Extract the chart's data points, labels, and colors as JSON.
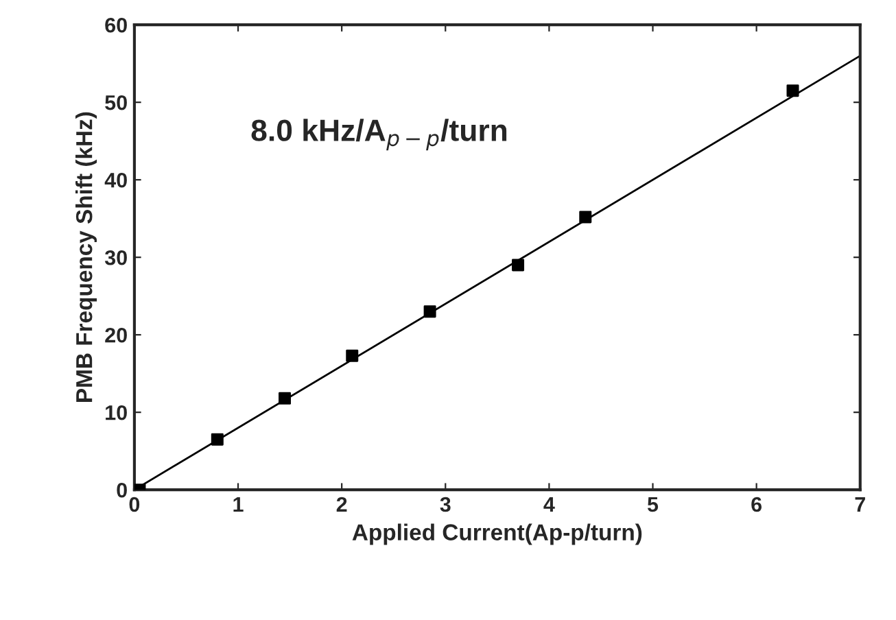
{
  "chart_data": {
    "type": "scatter",
    "xlabel": "Applied Current(Ap-p/turn)",
    "ylabel": "PMB Frequency Shift (kHz)",
    "annotations": [
      "8.0 kHz/A$_{p−p}$/turn"
    ],
    "series": [
      {
        "color": "#000000",
        "marker": "square",
        "x": [
          0.05,
          0.8,
          1.45,
          2.1,
          2.85,
          3.7,
          4.35,
          6.35
        ],
        "values": [
          0,
          6.5,
          11.8,
          17.3,
          23,
          29,
          35.2,
          51.5
        ]
      },
      {
        "type": "line",
        "color": "#000000",
        "marker": "none",
        "line_style": "solid",
        "x": [
          0,
          7
        ],
        "values": [
          0,
          56
        ]
      }
    ],
    "xlim": [
      0,
      7
    ],
    "xticks": [
      0,
      1,
      2,
      3,
      4,
      5,
      6,
      7
    ],
    "ylim": [
      0,
      60
    ],
    "yticks": [
      0,
      10,
      20,
      30,
      40,
      50,
      60
    ],
    "grid": false
  }
}
